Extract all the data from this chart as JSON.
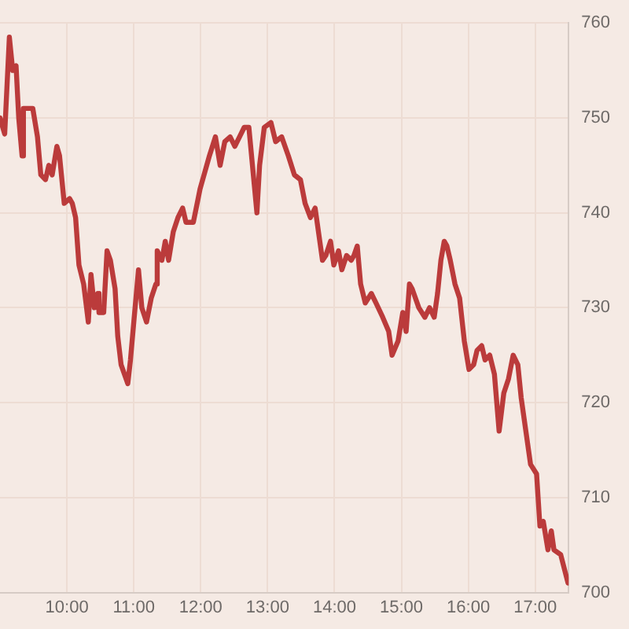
{
  "chart_data": {
    "type": "line",
    "x": [
      9.0,
      9.07,
      9.14,
      9.19,
      9.24,
      9.28,
      9.33,
      9.35,
      9.45,
      9.49,
      9.56,
      9.61,
      9.68,
      9.73,
      9.78,
      9.85,
      9.89,
      9.96,
      10.04,
      10.08,
      10.13,
      10.18,
      10.25,
      10.32,
      10.36,
      10.41,
      10.46,
      10.48,
      10.55,
      10.6,
      10.65,
      10.72,
      10.76,
      10.81,
      10.86,
      10.91,
      10.95,
      11.0,
      11.07,
      11.12,
      11.19,
      11.26,
      11.33,
      11.35,
      11.42,
      11.47,
      11.52,
      11.59,
      11.66,
      11.73,
      11.78,
      11.85,
      11.89,
      11.99,
      12.13,
      12.22,
      12.29,
      12.36,
      12.44,
      12.51,
      12.58,
      12.65,
      12.72,
      12.84,
      12.88,
      12.95,
      13.05,
      13.12,
      13.21,
      13.31,
      13.4,
      13.49,
      13.56,
      13.64,
      13.71,
      13.78,
      13.82,
      13.87,
      13.94,
      13.99,
      14.06,
      14.11,
      14.18,
      14.25,
      14.29,
      14.34,
      14.39,
      14.46,
      14.55,
      14.62,
      14.72,
      14.81,
      14.86,
      14.95,
      15.02,
      15.07,
      15.12,
      15.16,
      15.26,
      15.35,
      15.42,
      15.49,
      15.54,
      15.59,
      15.64,
      15.68,
      15.73,
      15.8,
      15.87,
      15.94,
      16.01,
      16.08,
      16.13,
      16.2,
      16.25,
      16.32,
      16.39,
      16.46,
      16.53,
      16.6,
      16.67,
      16.74,
      16.79,
      16.86,
      16.93,
      17.02,
      17.07,
      17.12,
      17.19,
      17.24,
      17.28,
      17.38,
      17.49
    ],
    "series": [
      {
        "color": "#bb3b3b",
        "values": [
          750,
          748.3,
          758.5,
          755,
          755.5,
          750,
          746,
          751,
          751,
          751,
          748,
          744,
          743.5,
          745,
          744,
          747,
          746,
          741,
          741.5,
          741,
          739.5,
          734.5,
          732.5,
          728.5,
          733.5,
          730,
          731.5,
          729.5,
          729.5,
          736,
          735,
          732,
          727,
          724,
          723,
          722,
          724.5,
          728.5,
          734,
          730,
          728.5,
          731,
          732.5,
          736,
          735,
          737,
          735,
          738,
          739.5,
          740.5,
          739,
          739,
          739,
          742.5,
          746,
          748,
          745,
          747.5,
          748,
          747,
          748,
          749,
          749,
          740,
          745,
          749,
          749.5,
          747.5,
          748,
          746,
          744,
          743.5,
          741,
          739.5,
          740.5,
          737,
          735,
          735.5,
          737,
          734.5,
          736,
          734,
          735.5,
          735,
          735.5,
          736.5,
          732.5,
          730.5,
          731.5,
          730.5,
          729,
          727.5,
          725,
          726.5,
          729.5,
          727.5,
          732.5,
          732,
          730,
          729,
          730,
          729,
          731.5,
          735,
          737,
          736.5,
          735,
          732.5,
          731,
          726.5,
          723.5,
          724,
          725.5,
          726,
          724.5,
          725,
          723,
          717,
          721,
          722.5,
          725,
          724,
          720.5,
          717,
          713.5,
          712.5,
          707,
          707.5,
          704.5,
          706.5,
          704.5,
          704,
          701
        ]
      }
    ],
    "xlim": [
      9,
      17.5
    ],
    "xticks": [
      {
        "value": 10,
        "label": "10:00"
      },
      {
        "value": 11,
        "label": "11:00"
      },
      {
        "value": 12,
        "label": "12:00"
      },
      {
        "value": 13,
        "label": "13:00"
      },
      {
        "value": 14,
        "label": "14:00"
      },
      {
        "value": 15,
        "label": "15:00"
      },
      {
        "value": 16,
        "label": "16:00"
      },
      {
        "value": 17,
        "label": "17:00"
      }
    ],
    "ylim": [
      700,
      760
    ],
    "yticks": [
      700,
      710,
      720,
      730,
      740,
      750,
      760
    ],
    "grid": true,
    "legend": false,
    "marker": "none",
    "line_style": "solid"
  }
}
